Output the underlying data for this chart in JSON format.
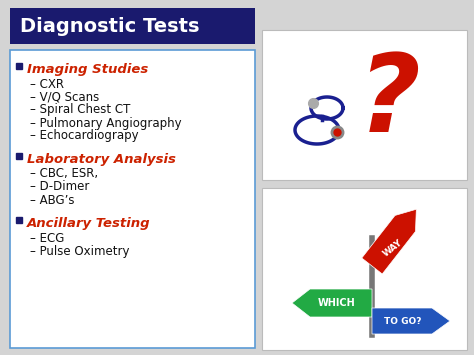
{
  "title": "Diagnostic Tests",
  "title_bg": "#1a1a6e",
  "title_color": "#ffffff",
  "bg_color": "#d4d4d4",
  "content_bg": "#ffffff",
  "content_border": "#5b9bd5",
  "sections": [
    {
      "header": "Imaging Studies",
      "header_color": "#cc2200",
      "items": [
        "CXR",
        "V/Q Scans",
        "Spiral Chest CT",
        "Pulmonary Angiography",
        "Echocardiograpy"
      ]
    },
    {
      "header": "Laboratory Analysis",
      "header_color": "#cc2200",
      "items": [
        "CBC, ESR,",
        "D-Dimer",
        "ABG’s"
      ]
    },
    {
      "header": "Ancillary Testing",
      "header_color": "#cc2200",
      "items": [
        "ECG",
        "Pulse Oximetry"
      ]
    }
  ],
  "bullet_color": "#1a1a6e",
  "item_color": "#111111",
  "item_fontsize": 8.5,
  "header_fontsize": 9.5,
  "title_fontsize": 14,
  "figw": 4.74,
  "figh": 3.55,
  "dpi": 100
}
